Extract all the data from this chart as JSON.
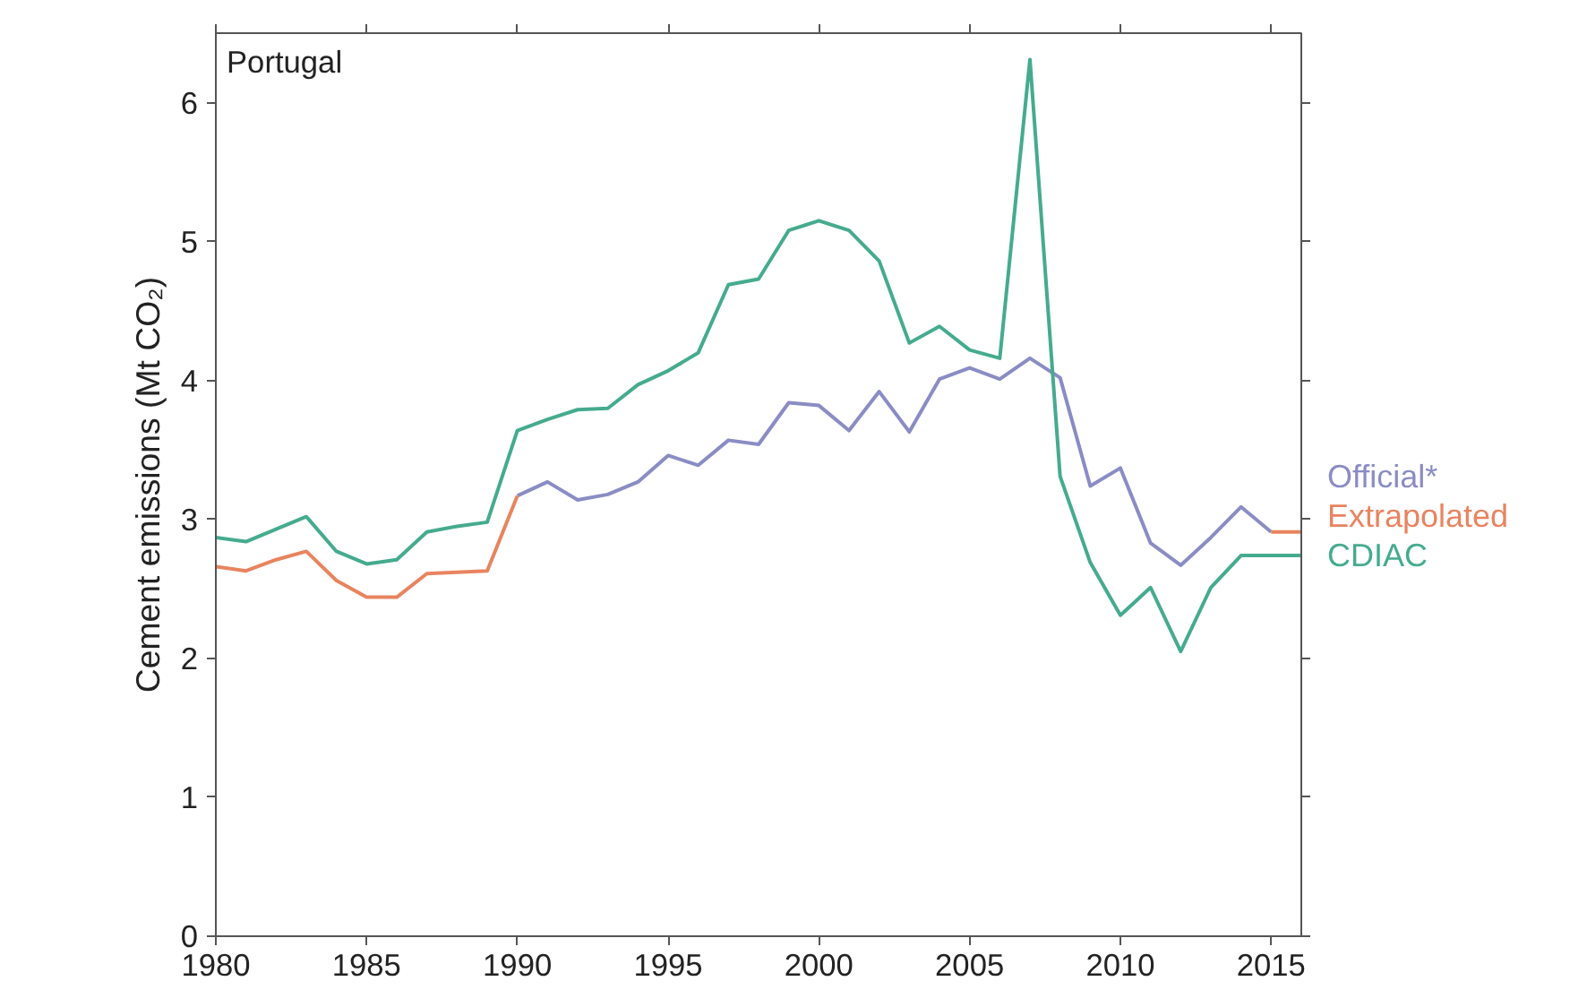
{
  "chart_data": {
    "type": "line",
    "ylabel": "Cement emissions (Mt CO₂)",
    "annotations": [
      "Portugal"
    ],
    "xlim": [
      1980,
      2016
    ],
    "xticks": [
      1980,
      1985,
      1990,
      1995,
      2000,
      2005,
      2010,
      2015
    ],
    "ylim": [
      0,
      6.5
    ],
    "yticks": [
      0,
      1,
      2,
      3,
      4,
      5,
      6
    ],
    "grid": false,
    "line_style": "solid",
    "series": [
      {
        "name": "Official*",
        "color": "#8a8cc4",
        "x": [
          1990,
          1991,
          1992,
          1993,
          1994,
          1995,
          1996,
          1997,
          1998,
          1999,
          2000,
          2001,
          2002,
          2003,
          2004,
          2005,
          2006,
          2007,
          2008,
          2009,
          2010,
          2011,
          2012,
          2013,
          2014,
          2015
        ],
        "values": [
          3.17,
          3.27,
          3.14,
          3.18,
          3.27,
          3.46,
          3.39,
          3.57,
          3.54,
          3.84,
          3.82,
          3.64,
          3.92,
          3.63,
          4.01,
          4.09,
          4.01,
          4.16,
          4.02,
          3.24,
          3.37,
          2.83,
          2.67,
          2.87,
          3.09,
          2.91
        ]
      },
      {
        "name": "Extrapolated",
        "color": "#e8845f",
        "x": [
          1980,
          1981,
          1982,
          1983,
          1984,
          1985,
          1986,
          1987,
          1988,
          1989,
          1990,
          2015,
          2016
        ],
        "values": [
          2.66,
          2.63,
          2.71,
          2.77,
          2.56,
          2.44,
          2.44,
          2.61,
          2.62,
          2.63,
          3.17,
          2.91,
          2.91
        ]
      },
      {
        "name": "CDIAC",
        "color": "#45ab8e",
        "x": [
          1980,
          1981,
          1982,
          1983,
          1984,
          1985,
          1986,
          1987,
          1988,
          1989,
          1990,
          1991,
          1992,
          1993,
          1994,
          1995,
          1996,
          1997,
          1998,
          1999,
          2000,
          2001,
          2002,
          2003,
          2004,
          2005,
          2006,
          2007,
          2008,
          2009,
          2010,
          2011,
          2012,
          2013,
          2014,
          2015,
          2016
        ],
        "values": [
          2.87,
          2.84,
          2.93,
          3.02,
          2.77,
          2.68,
          2.71,
          2.91,
          2.95,
          2.98,
          3.64,
          3.72,
          3.79,
          3.8,
          3.97,
          4.07,
          4.2,
          4.69,
          4.73,
          5.08,
          5.15,
          5.08,
          4.86,
          4.27,
          4.39,
          4.22,
          4.16,
          6.31,
          3.31,
          2.69,
          2.31,
          2.51,
          2.05,
          2.51,
          2.74,
          2.74,
          2.74
        ]
      }
    ]
  }
}
